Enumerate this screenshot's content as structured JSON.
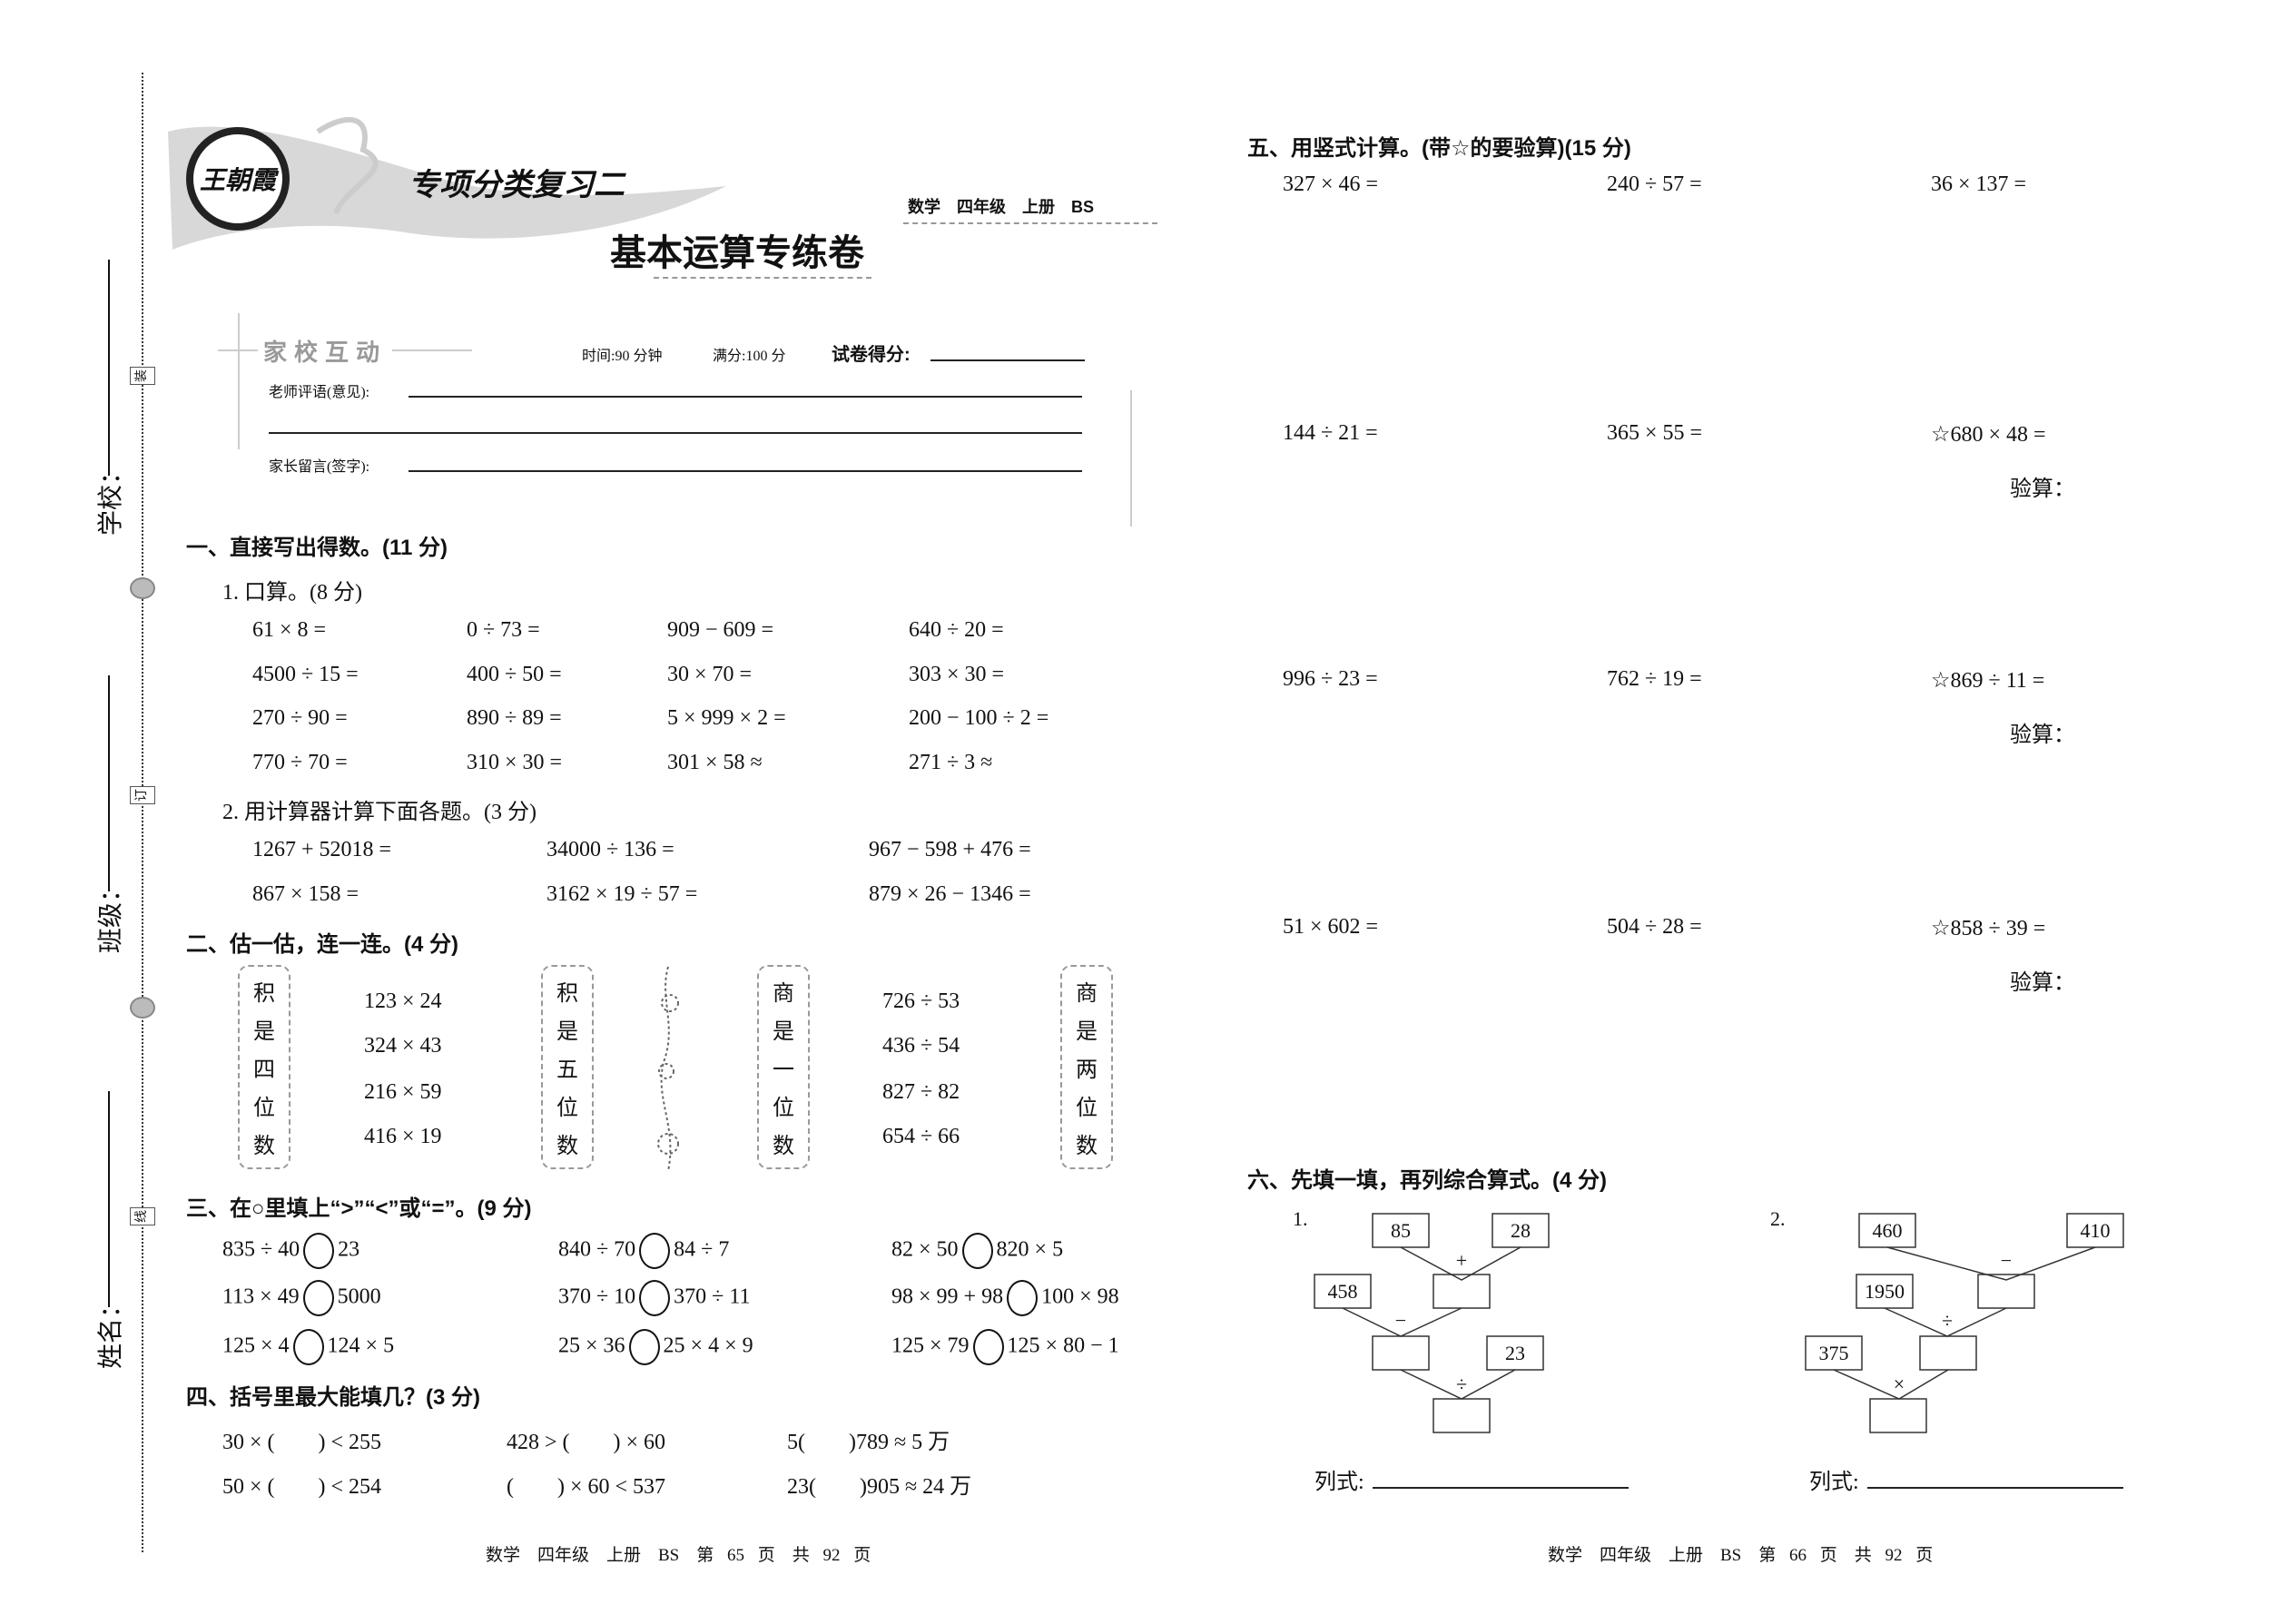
{
  "sidebar": {
    "school_label": "学校：",
    "class_label": "班级：",
    "name_label": "姓名：",
    "binding_marks": [
      "装",
      "订",
      "线"
    ]
  },
  "header": {
    "logo_text": "王朝霞",
    "series_title": "专项分类复习二",
    "subject_tag": "数学　四年级　上册　BS",
    "main_title": "基本运算专练卷"
  },
  "info": {
    "badge": "家校互动",
    "time": "时间:90 分钟",
    "full_score": "满分:100 分",
    "score_label": "试卷得分:",
    "teacher_comment_label": "老师评语(意见):",
    "parent_comment_label": "家长留言(签字):"
  },
  "section1": {
    "title": "一、直接写出得数。(11 分)",
    "part1_title": "1. 口算。(8 分)",
    "part1_rows": [
      [
        "61 × 8 =",
        "0 ÷ 73 =",
        "909 − 609 =",
        "640 ÷ 20 ="
      ],
      [
        "4500 ÷ 15 =",
        "400 ÷ 50 =",
        "30 × 70 =",
        "303 × 30 ="
      ],
      [
        "270 ÷ 90 =",
        "890 ÷ 89 =",
        "5 × 999 × 2 =",
        "200 − 100 ÷ 2 ="
      ],
      [
        "770 ÷ 70 =",
        "310 × 30 =",
        "301 × 58 ≈",
        "271 ÷ 3 ≈"
      ]
    ],
    "part2_title": "2. 用计算器计算下面各题。(3 分)",
    "part2_rows": [
      [
        "1267 + 52018 =",
        "34000 ÷ 136 =",
        "967 − 598 + 476 ="
      ],
      [
        "867 × 158 =",
        "3162 × 19 ÷ 57 =",
        "879 × 26 − 1346 ="
      ]
    ]
  },
  "section2": {
    "title": "二、估一估，连一连。(4 分)",
    "boxes": [
      [
        "积",
        "是",
        "四",
        "位",
        "数"
      ],
      [
        "积",
        "是",
        "五",
        "位",
        "数"
      ],
      [
        "商",
        "是",
        "一",
        "位",
        "数"
      ],
      [
        "商",
        "是",
        "两",
        "位",
        "数"
      ]
    ],
    "products": [
      "123 × 24",
      "324 × 43",
      "216 × 59",
      "416 × 19"
    ],
    "quotients": [
      "726 ÷ 53",
      "436 ÷ 54",
      "827 ÷ 82",
      "654 ÷ 66"
    ]
  },
  "section3": {
    "title": "三、在○里填上“>”“<”或“=”。(9 分)",
    "rows": [
      [
        [
          "835 ÷ 40",
          "23"
        ],
        [
          "840 ÷ 70",
          "84 ÷ 7"
        ],
        [
          "82 × 50",
          "820 × 5"
        ]
      ],
      [
        [
          "113 × 49",
          "5000"
        ],
        [
          "370 ÷ 10",
          "370 ÷ 11"
        ],
        [
          "98 × 99 + 98",
          "100 × 98"
        ]
      ],
      [
        [
          "125 × 4",
          "124 × 5"
        ],
        [
          "25 × 36",
          "25 × 4 × 9"
        ],
        [
          "125 × 79",
          "125 × 80 − 1"
        ]
      ]
    ]
  },
  "section4": {
    "title": "四、括号里最大能填几？(3 分)",
    "rows": [
      [
        "30 × (　　) < 255",
        "428 > (　　) × 60",
        "5(　　)789 ≈ 5 万"
      ],
      [
        "50 × (　　) < 254",
        "(　　) × 60 < 537",
        "23(　　)905 ≈ 24 万"
      ]
    ]
  },
  "section5": {
    "title": "五、用竖式计算。(带☆的要验算)(15 分)",
    "rows": [
      [
        "327 × 46 =",
        "240 ÷ 57 =",
        "36 × 137 ="
      ],
      [
        "144 ÷ 21 =",
        "365 × 55 =",
        "☆680 × 48 ="
      ],
      [
        "996 ÷ 23 =",
        "762 ÷ 19 =",
        "☆869 ÷ 11 ="
      ],
      [
        "51 × 602 =",
        "504 ÷ 28 =",
        "☆858 ÷ 39 ="
      ]
    ],
    "check_label": "验算："
  },
  "section6": {
    "title": "六、先填一填，再列综合算式。(4 分)",
    "tree1": {
      "label": "1.",
      "a": "85",
      "b": "28",
      "op1": "+",
      "c": "458",
      "op2": "−",
      "d": "23",
      "op3": "÷"
    },
    "tree2": {
      "label": "2.",
      "a": "460",
      "b": "410",
      "op1": "−",
      "c": "1950",
      "op2": "÷",
      "d": "375",
      "op3": "×"
    },
    "formula_label": "列式:"
  },
  "footer": {
    "left": "数学　四年级　上册　BS　第 65 页　共 92 页",
    "right": "数学　四年级　上册　BS　第 66 页　共 92 页"
  }
}
